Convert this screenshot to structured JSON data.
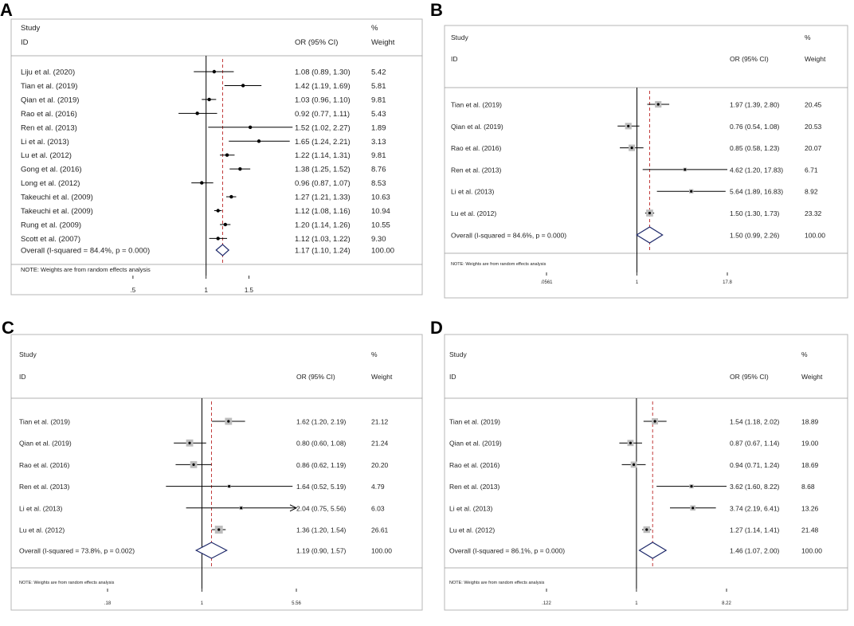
{
  "figure_panels": [
    "A",
    "B",
    "C",
    "D"
  ],
  "chart_data": [
    {
      "panel": "A",
      "type": "forest",
      "header": {
        "study": "Study",
        "id": "ID",
        "or_ci": "OR (95% CI)",
        "percent": "%",
        "weight": "Weight"
      },
      "studies": [
        {
          "label": "Liju et al.  (2020)",
          "or": 1.08,
          "lo": 0.89,
          "hi": 1.3,
          "ci_text": "1.08 (0.89, 1.30)",
          "weight": 5.42,
          "weight_text": "5.42"
        },
        {
          "label": "Tian et al. (2019)",
          "or": 1.42,
          "lo": 1.19,
          "hi": 1.69,
          "ci_text": "1.42 (1.19, 1.69)",
          "weight": 5.81,
          "weight_text": "5.81"
        },
        {
          "label": "Qian et al. (2019)",
          "or": 1.03,
          "lo": 0.96,
          "hi": 1.1,
          "ci_text": "1.03 (0.96, 1.10)",
          "weight": 9.81,
          "weight_text": "9.81"
        },
        {
          "label": "Rao et al.  (2016)",
          "or": 0.92,
          "lo": 0.77,
          "hi": 1.11,
          "ci_text": "0.92 (0.77, 1.11)",
          "weight": 5.43,
          "weight_text": "5.43"
        },
        {
          "label": "Ren et al. (2013)",
          "or": 1.52,
          "lo": 1.02,
          "hi": 2.27,
          "ci_text": "1.52 (1.02, 2.27)",
          "weight": 1.89,
          "weight_text": "1.89"
        },
        {
          "label": "Li et al.  (2013)",
          "or": 1.65,
          "lo": 1.24,
          "hi": 2.21,
          "ci_text": "1.65 (1.24, 2.21)",
          "weight": 3.13,
          "weight_text": "3.13"
        },
        {
          "label": "Lu et al.  (2012)",
          "or": 1.22,
          "lo": 1.14,
          "hi": 1.31,
          "ci_text": "1.22 (1.14, 1.31)",
          "weight": 9.81,
          "weight_text": "9.81"
        },
        {
          "label": "Gong et al.  (2016)",
          "or": 1.38,
          "lo": 1.25,
          "hi": 1.52,
          "ci_text": "1.38 (1.25, 1.52)",
          "weight": 8.76,
          "weight_text": "8.76"
        },
        {
          "label": "Long et al.  (2012)",
          "or": 0.96,
          "lo": 0.87,
          "hi": 1.07,
          "ci_text": "0.96 (0.87, 1.07)",
          "weight": 8.53,
          "weight_text": "8.53"
        },
        {
          "label": "Takeuchi et al. (2009)",
          "or": 1.27,
          "lo": 1.21,
          "hi": 1.33,
          "ci_text": "1.27 (1.21, 1.33)",
          "weight": 10.63,
          "weight_text": "10.63"
        },
        {
          "label": "Takeuchi et al. (2009)",
          "or": 1.12,
          "lo": 1.08,
          "hi": 1.16,
          "ci_text": "1.12 (1.08, 1.16)",
          "weight": 10.94,
          "weight_text": "10.94"
        },
        {
          "label": "Rung et al. (2009)",
          "or": 1.2,
          "lo": 1.14,
          "hi": 1.26,
          "ci_text": "1.20 (1.14, 1.26)",
          "weight": 10.55,
          "weight_text": "10.55"
        },
        {
          "label": "Scott et al. (2007)",
          "or": 1.12,
          "lo": 1.03,
          "hi": 1.22,
          "ci_text": "1.12 (1.03, 1.22)",
          "weight": 9.3,
          "weight_text": "9.30"
        }
      ],
      "overall": {
        "label": "Overall  (I-squared = 84.4%, p = 0.000)",
        "or": 1.17,
        "lo": 1.1,
        "hi": 1.24,
        "ci_text": "1.17 (1.10, 1.24)",
        "weight_text": "100.00"
      },
      "note": "NOTE: Weights are from random effects analysis",
      "x_ticks": [
        {
          "value": 0.5,
          "label": ".5"
        },
        {
          "value": 1,
          "label": "1"
        },
        {
          "value": 1.5,
          "label": "1.5"
        }
      ],
      "scale": "log",
      "x_range": [
        0.39,
        2.3
      ],
      "style": "dot",
      "null_value": 1
    },
    {
      "panel": "B",
      "type": "forest",
      "header": {
        "study": "Study",
        "id": "ID",
        "or_ci": "OR (95% CI)",
        "percent": "%",
        "weight": "Weight"
      },
      "studies": [
        {
          "label": "Tian et al. (2019)",
          "or": 1.97,
          "lo": 1.39,
          "hi": 2.8,
          "ci_text": "1.97 (1.39, 2.80)",
          "weight": 20.45,
          "weight_text": "20.45"
        },
        {
          "label": "Qian et al. (2019)",
          "or": 0.76,
          "lo": 0.54,
          "hi": 1.08,
          "ci_text": "0.76 (0.54, 1.08)",
          "weight": 20.53,
          "weight_text": "20.53"
        },
        {
          "label": "Rao et al.  (2016)",
          "or": 0.85,
          "lo": 0.58,
          "hi": 1.23,
          "ci_text": "0.85 (0.58, 1.23)",
          "weight": 20.07,
          "weight_text": "20.07"
        },
        {
          "label": "Ren et al. (2013)",
          "or": 4.62,
          "lo": 1.2,
          "hi": 17.83,
          "ci_text": "4.62 (1.20, 17.83)",
          "weight": 6.71,
          "weight_text": "6.71"
        },
        {
          "label": "Li et al.  (2013)",
          "or": 5.64,
          "lo": 1.89,
          "hi": 16.83,
          "ci_text": "5.64 (1.89, 16.83)",
          "weight": 8.92,
          "weight_text": "8.92"
        },
        {
          "label": "Lu et al.  (2012)",
          "or": 1.5,
          "lo": 1.3,
          "hi": 1.73,
          "ci_text": "1.50 (1.30, 1.73)",
          "weight": 23.32,
          "weight_text": "23.32"
        }
      ],
      "overall": {
        "label": "Overall  (I-squared = 84.6%, p = 0.000)",
        "or": 1.5,
        "lo": 0.99,
        "hi": 2.26,
        "ci_text": "1.50 (0.99, 2.26)",
        "weight_text": "100.00"
      },
      "note": "NOTE: Weights are from random effects analysis",
      "x_ticks": [
        {
          "value": 0.0561,
          "label": ".0561"
        },
        {
          "value": 1,
          "label": "1"
        },
        {
          "value": 17.8,
          "label": "17.8"
        }
      ],
      "scale": "log",
      "x_range": [
        0.0561,
        17.8
      ],
      "style": "box",
      "null_value": 1
    },
    {
      "panel": "C",
      "type": "forest",
      "header": {
        "study": "Study",
        "id": "ID",
        "or_ci": "OR (95% CI)",
        "percent": "%",
        "weight": "Weight"
      },
      "studies": [
        {
          "label": "Tian et al. (2019)",
          "or": 1.62,
          "lo": 1.2,
          "hi": 2.19,
          "ci_text": "1.62 (1.20, 2.19)",
          "weight": 21.12,
          "weight_text": "21.12"
        },
        {
          "label": "Qian et al. (2019)",
          "or": 0.8,
          "lo": 0.6,
          "hi": 1.08,
          "ci_text": "0.80 (0.60, 1.08)",
          "weight": 21.24,
          "weight_text": "21.24"
        },
        {
          "label": "Rao et al.  (2016)",
          "or": 0.86,
          "lo": 0.62,
          "hi": 1.19,
          "ci_text": "0.86 (0.62, 1.19)",
          "weight": 20.2,
          "weight_text": "20.20"
        },
        {
          "label": "Ren et al. (2013)",
          "or": 1.64,
          "lo": 0.52,
          "hi": 5.19,
          "ci_text": "1.64 (0.52, 5.19)",
          "weight": 4.79,
          "weight_text": "4.79"
        },
        {
          "label": "Li et al.  (2013)",
          "or": 2.04,
          "lo": 0.75,
          "hi": 5.56,
          "ci_text": "2.04 (0.75, 5.56)",
          "weight": 6.03,
          "weight_text": "6.03",
          "arrow": true
        },
        {
          "label": "Lu et al.  (2012)",
          "or": 1.36,
          "lo": 1.2,
          "hi": 1.54,
          "ci_text": "1.36 (1.20, 1.54)",
          "weight": 26.61,
          "weight_text": "26.61"
        }
      ],
      "overall": {
        "label": "Overall  (I-squared = 73.8%, p = 0.002)",
        "or": 1.19,
        "lo": 0.9,
        "hi": 1.57,
        "ci_text": "1.19 (0.90, 1.57)",
        "weight_text": "100.00"
      },
      "note": "NOTE: Weights are from random effects analysis",
      "x_ticks": [
        {
          "value": 0.18,
          "label": ".18"
        },
        {
          "value": 1,
          "label": "1"
        },
        {
          "value": 5.56,
          "label": "5.56"
        }
      ],
      "scale": "log",
      "x_range": [
        0.18,
        5.56
      ],
      "style": "box",
      "null_value": 1
    },
    {
      "panel": "D",
      "type": "forest",
      "header": {
        "study": "Study",
        "id": "ID",
        "or_ci": "OR (95% CI)",
        "percent": "%",
        "weight": "Weight"
      },
      "studies": [
        {
          "label": "Tian et al. (2019)",
          "or": 1.54,
          "lo": 1.18,
          "hi": 2.02,
          "ci_text": "1.54 (1.18, 2.02)",
          "weight": 18.89,
          "weight_text": "18.89"
        },
        {
          "label": "Qian et al. (2019)",
          "or": 0.87,
          "lo": 0.67,
          "hi": 1.14,
          "ci_text": "0.87 (0.67, 1.14)",
          "weight": 19.0,
          "weight_text": "19.00"
        },
        {
          "label": "Rao et al.  (2016)",
          "or": 0.94,
          "lo": 0.71,
          "hi": 1.24,
          "ci_text": "0.94 (0.71, 1.24)",
          "weight": 18.69,
          "weight_text": "18.69"
        },
        {
          "label": "Ren et al. (2013)",
          "or": 3.62,
          "lo": 1.6,
          "hi": 8.22,
          "ci_text": "3.62 (1.60, 8.22)",
          "weight": 8.68,
          "weight_text": "8.68"
        },
        {
          "label": "Li et al.  (2013)",
          "or": 3.74,
          "lo": 2.19,
          "hi": 6.41,
          "ci_text": "3.74 (2.19, 6.41)",
          "weight": 13.26,
          "weight_text": "13.26"
        },
        {
          "label": "Lu et al.  (2012)",
          "or": 1.27,
          "lo": 1.14,
          "hi": 1.41,
          "ci_text": "1.27 (1.14, 1.41)",
          "weight": 21.48,
          "weight_text": "21.48"
        }
      ],
      "overall": {
        "label": "Overall  (I-squared = 86.1%, p = 0.000)",
        "or": 1.46,
        "lo": 1.07,
        "hi": 2.0,
        "ci_text": "1.46 (1.07, 2.00)",
        "weight_text": "100.00"
      },
      "note": "NOTE: Weights are from random effects analysis",
      "x_ticks": [
        {
          "value": 0.122,
          "label": ".122"
        },
        {
          "value": 1,
          "label": "1"
        },
        {
          "value": 8.22,
          "label": "8.22"
        }
      ],
      "scale": "log",
      "x_range": [
        0.122,
        8.22
      ],
      "style": "box",
      "null_value": 1
    }
  ],
  "colors": {
    "frame": "#b7b7b7",
    "background": "#ffffff",
    "text": "#222222",
    "line": "#000000",
    "overall_line": "#c23b3b",
    "diamond": "#1f2a6b",
    "box_fill": "#bdbdbd"
  }
}
